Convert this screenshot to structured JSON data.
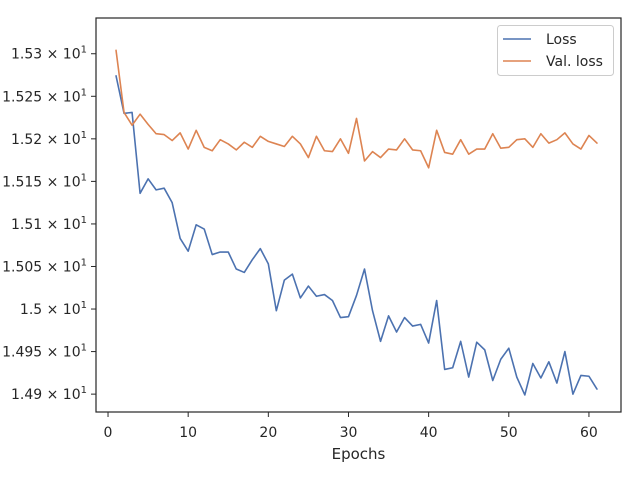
{
  "chart_data": {
    "type": "line",
    "title": "",
    "xlabel": "Epochs",
    "ylabel": "",
    "grid": false,
    "legend_position": "top-right",
    "xlim": [
      -1.5,
      64
    ],
    "ylim": [
      14.879,
      15.342
    ],
    "x_ticks": [
      0,
      10,
      20,
      30,
      40,
      50,
      60
    ],
    "x_tick_labels": [
      "0",
      "10",
      "20",
      "30",
      "40",
      "50",
      "60"
    ],
    "y_ticks": [
      14.9,
      14.95,
      15.0,
      15.05,
      15.1,
      15.15,
      15.2,
      15.25,
      15.3
    ],
    "y_tick_labels": [
      {
        "mantissa": "1.49",
        "base": "10",
        "exp": "1"
      },
      {
        "mantissa": "1.495",
        "base": "10",
        "exp": "1"
      },
      {
        "mantissa": "1.5",
        "base": "10",
        "exp": "1"
      },
      {
        "mantissa": "1.505",
        "base": "10",
        "exp": "1"
      },
      {
        "mantissa": "1.51",
        "base": "10",
        "exp": "1"
      },
      {
        "mantissa": "1.515",
        "base": "10",
        "exp": "1"
      },
      {
        "mantissa": "1.52",
        "base": "10",
        "exp": "1"
      },
      {
        "mantissa": "1.525",
        "base": "10",
        "exp": "1"
      },
      {
        "mantissa": "1.53",
        "base": "10",
        "exp": "1"
      }
    ],
    "x": [
      1,
      2,
      3,
      4,
      5,
      6,
      7,
      8,
      9,
      10,
      11,
      12,
      13,
      14,
      15,
      16,
      17,
      18,
      19,
      20,
      21,
      22,
      23,
      24,
      25,
      26,
      27,
      28,
      29,
      30,
      31,
      32,
      33,
      34,
      35,
      36,
      37,
      38,
      39,
      40,
      41,
      42,
      43,
      44,
      45,
      46,
      47,
      48,
      49,
      50,
      51,
      52,
      53,
      54,
      55,
      56,
      57,
      58,
      59,
      60,
      61
    ],
    "series": [
      {
        "name": "Loss",
        "color": "#4c72b0",
        "values": [
          15.274,
          15.23,
          15.231,
          15.136,
          15.153,
          15.14,
          15.142,
          15.125,
          15.083,
          15.068,
          15.099,
          15.094,
          15.064,
          15.067,
          15.067,
          15.047,
          15.043,
          15.058,
          15.071,
          15.053,
          14.998,
          15.034,
          15.041,
          15.013,
          15.027,
          15.015,
          15.017,
          15.01,
          14.99,
          14.991,
          15.016,
          15.047,
          14.998,
          14.962,
          14.992,
          14.973,
          14.99,
          14.98,
          14.982,
          14.96,
          15.01,
          14.929,
          14.931,
          14.962,
          14.92,
          14.961,
          14.952,
          14.916,
          14.941,
          14.954,
          14.92,
          14.899,
          14.936,
          14.919,
          14.938,
          14.913,
          14.95,
          14.9,
          14.922,
          14.921,
          14.906
        ]
      },
      {
        "name": "Val. loss",
        "color": "#dd8452",
        "values": [
          15.304,
          15.231,
          15.216,
          15.229,
          15.217,
          15.206,
          15.205,
          15.198,
          15.207,
          15.188,
          15.21,
          15.19,
          15.186,
          15.199,
          15.194,
          15.187,
          15.196,
          15.19,
          15.203,
          15.197,
          15.194,
          15.191,
          15.203,
          15.194,
          15.178,
          15.203,
          15.186,
          15.185,
          15.2,
          15.183,
          15.224,
          15.174,
          15.185,
          15.178,
          15.188,
          15.187,
          15.2,
          15.187,
          15.186,
          15.166,
          15.21,
          15.184,
          15.182,
          15.199,
          15.182,
          15.188,
          15.188,
          15.206,
          15.189,
          15.19,
          15.199,
          15.2,
          15.19,
          15.206,
          15.195,
          15.199,
          15.207,
          15.194,
          15.188,
          15.204,
          15.195
        ]
      }
    ]
  }
}
